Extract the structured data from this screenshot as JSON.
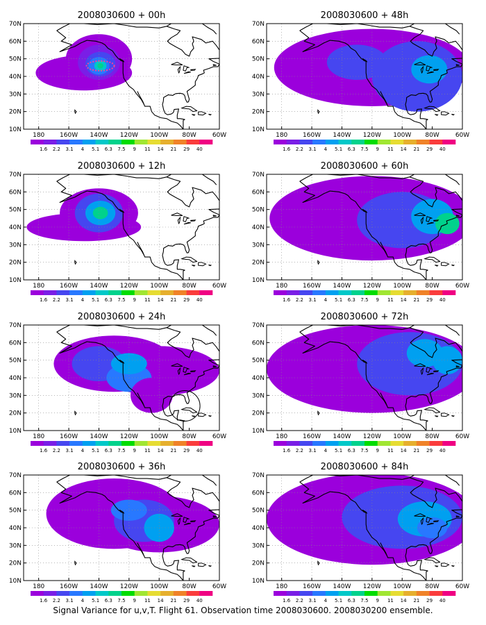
{
  "caption": "Signal Variance for u,v,T. Flight 61. Observation time 2008030600. 2008030200 ensemble.",
  "axes": {
    "x_tick_labels": [
      "180",
      "160W",
      "140W",
      "120W",
      "100W",
      "80W",
      "60W"
    ],
    "y_tick_labels": [
      "10N",
      "20N",
      "30N",
      "40N",
      "50N",
      "60N",
      "70N"
    ]
  },
  "colorbar": {
    "labels": [
      "1.6",
      "2.2",
      "3.1",
      "4",
      "5.1",
      "6.3",
      "7.5",
      "9",
      "11",
      "14",
      "21",
      "29",
      "40"
    ],
    "colors": [
      "#9b00dc",
      "#7a1ee6",
      "#4646f0",
      "#2878ff",
      "#00a0f0",
      "#00c8c8",
      "#00d28c",
      "#00dc00",
      "#a0e632",
      "#e6dc32",
      "#e6af2d",
      "#f08228",
      "#fa3c3c",
      "#f00082"
    ]
  },
  "colors": {
    "land_outline": "#000000",
    "grid": "#888888",
    "obs_marker": "#ff3c96"
  },
  "panels": [
    {
      "title": "2008030600 + 00h",
      "level": 0
    },
    {
      "title": "2008030600 + 48h",
      "level": 4
    },
    {
      "title": "2008030600 + 12h",
      "level": 1
    },
    {
      "title": "2008030600 + 60h",
      "level": 5
    },
    {
      "title": "2008030600 + 24h",
      "level": 2
    },
    {
      "title": "2008030600 + 72h",
      "level": 6
    },
    {
      "title": "2008030600 + 36h",
      "level": 3
    },
    {
      "title": "2008030600 + 84h",
      "level": 7
    }
  ]
}
